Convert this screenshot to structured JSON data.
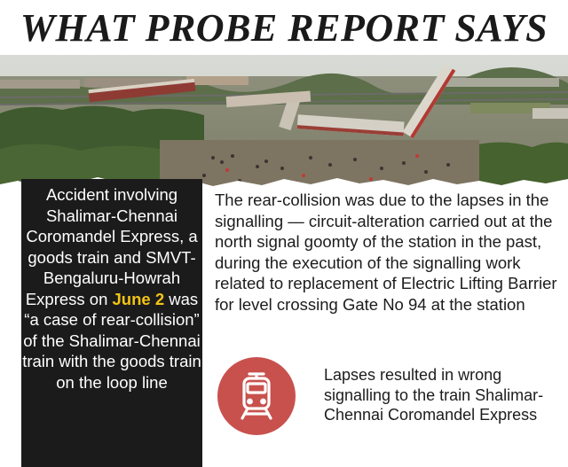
{
  "headline": "WHAT PROBE REPORT SAYS",
  "left_panel": {
    "text_before": "Accident involving Shalimar-Chennai Coromandel Express, a goods train and SMVT-Bengaluru-Howrah Express on ",
    "highlight": "June 2",
    "text_after": " was “a case of rear-collision” of the Shalimar-Chennai train with the goods train on the loop line"
  },
  "main_text": "The rear-collision was due to the lapses in the signalling — circuit-alteration carried out at the north signal goomty of the station in the past, during the execution of the signalling work related to replacement of Electric Lifting Barrier for level crossing Gate No 94 at the station",
  "bullet": {
    "icon": "train-icon",
    "text": "Lapses resulted in wrong signalling to the train Shalimar-Chennai Coromandel Express"
  },
  "colors": {
    "highlight": "#f3c316",
    "panel_bg": "#1b1b1b",
    "icon_circle": "#c8514e"
  }
}
